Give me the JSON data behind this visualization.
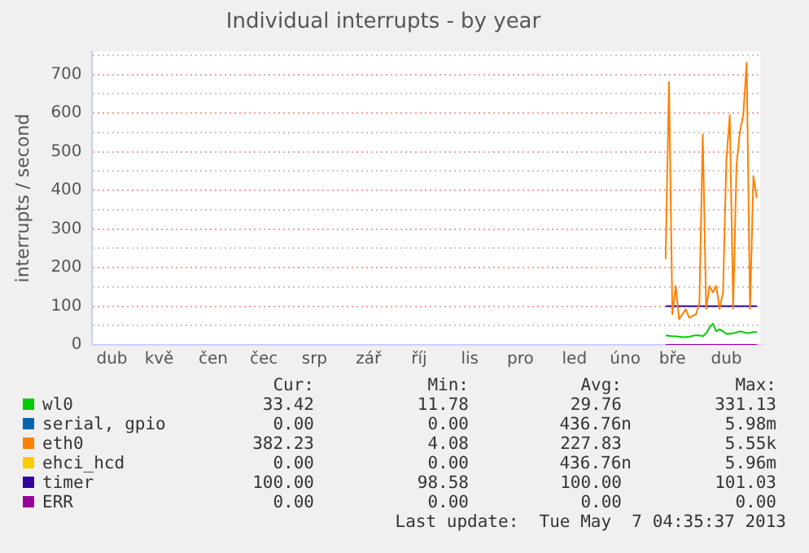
{
  "chart_data": {
    "type": "line",
    "title": "Individual interrupts - by year",
    "ylabel": "interrupts / second",
    "categories": [
      null,
      null,
      null,
      null,
      null,
      null,
      "dub",
      null,
      null,
      null,
      null,
      null,
      null,
      null,
      null,
      null,
      null,
      null,
      null,
      null,
      "kvě",
      null,
      null,
      null,
      null,
      null,
      null,
      null,
      null,
      null,
      null,
      null,
      null,
      null,
      null,
      null,
      "čen",
      null,
      null,
      null,
      null,
      null,
      null,
      null,
      null,
      null,
      null,
      null,
      null,
      null,
      null,
      "čec",
      null,
      null,
      null,
      null,
      null,
      null,
      null,
      null,
      null,
      null,
      null,
      null,
      null,
      null,
      "srp",
      null,
      null,
      null,
      null,
      null,
      null,
      null,
      null,
      null,
      null,
      null,
      null,
      null,
      null,
      null,
      "zář",
      null,
      null,
      null,
      null,
      null,
      null,
      null,
      null,
      null,
      null,
      null,
      null,
      null,
      null,
      "říj",
      null,
      null,
      null,
      null,
      null,
      null,
      null,
      null,
      null,
      null,
      null,
      null,
      null,
      null,
      "lis",
      null,
      null,
      null,
      null,
      null,
      null,
      null,
      null,
      null,
      null,
      null,
      null,
      null,
      null,
      "pro",
      null,
      null,
      null,
      null,
      null,
      null,
      null,
      null,
      null,
      null,
      null,
      null,
      null,
      null,
      null,
      "led",
      null,
      null,
      null,
      null,
      null,
      null,
      null,
      null,
      null,
      null,
      null,
      null,
      null,
      null,
      "úno",
      null,
      null,
      null,
      null,
      null,
      null,
      null,
      null,
      null,
      null,
      null,
      null,
      null,
      "bře",
      null,
      null,
      null,
      null,
      null,
      null,
      null,
      null,
      null,
      null,
      null,
      null,
      null,
      null,
      null,
      "dub",
      null,
      null,
      null,
      null,
      null,
      null,
      null,
      null,
      null,
      null
    ],
    "ylim": [
      0,
      760
    ],
    "yticks": [
      0,
      {
        "value": 50,
        "label": null
      },
      100,
      {
        "value": 150,
        "label": null
      },
      200,
      {
        "value": 250,
        "label": null
      },
      300,
      {
        "value": 350,
        "label": null
      },
      400,
      {
        "value": 450,
        "label": null
      },
      500,
      {
        "value": 550,
        "label": null
      },
      600,
      {
        "value": 650,
        "label": null
      },
      700,
      {
        "value": 750,
        "label": null
      }
    ],
    "grid": "y",
    "legend": "bottom",
    "series": [
      {
        "name": "wl0",
        "color": "#00cc00",
        "values": [
          null,
          null,
          null,
          null,
          null,
          null,
          null,
          null,
          null,
          null,
          null,
          null,
          null,
          null,
          null,
          null,
          null,
          null,
          null,
          null,
          null,
          null,
          null,
          null,
          null,
          null,
          null,
          null,
          null,
          null,
          null,
          null,
          null,
          null,
          null,
          null,
          null,
          null,
          null,
          null,
          null,
          null,
          null,
          null,
          null,
          null,
          null,
          null,
          null,
          null,
          null,
          null,
          null,
          null,
          null,
          null,
          null,
          null,
          null,
          null,
          null,
          null,
          null,
          null,
          null,
          null,
          null,
          null,
          null,
          null,
          null,
          null,
          null,
          null,
          null,
          null,
          null,
          null,
          null,
          null,
          null,
          null,
          null,
          null,
          null,
          null,
          null,
          null,
          null,
          null,
          null,
          null,
          null,
          null,
          null,
          null,
          null,
          null,
          null,
          null,
          null,
          null,
          null,
          null,
          null,
          null,
          null,
          null,
          null,
          null,
          null,
          null,
          null,
          null,
          null,
          null,
          null,
          null,
          null,
          null,
          null,
          null,
          null,
          null,
          null,
          null,
          null,
          null,
          null,
          null,
          null,
          null,
          null,
          null,
          null,
          null,
          null,
          null,
          null,
          null,
          null,
          null,
          null,
          null,
          null,
          null,
          null,
          null,
          null,
          null,
          null,
          null,
          null,
          null,
          null,
          null,
          null,
          null,
          null,
          null,
          null,
          null,
          null,
          null,
          null,
          null,
          null,
          null,
          null,
          null,
          24,
          23,
          22,
          22,
          21,
          20,
          20,
          21,
          23,
          25,
          24,
          22,
          30,
          45,
          55,
          35,
          40,
          35,
          28,
          29,
          30,
          32,
          35,
          33,
          30,
          31,
          33,
          33,
          null
        ]
      },
      {
        "name": "serial, gpio",
        "color": "#0066b3",
        "values": [
          null,
          null,
          null,
          null,
          null,
          null,
          null,
          null,
          null,
          null,
          null,
          null,
          null,
          null,
          null,
          null,
          null,
          null,
          null,
          null,
          null,
          null,
          null,
          null,
          null,
          null,
          null,
          null,
          null,
          null,
          null,
          null,
          null,
          null,
          null,
          null,
          null,
          null,
          null,
          null,
          null,
          null,
          null,
          null,
          null,
          null,
          null,
          null,
          null,
          null,
          null,
          null,
          null,
          null,
          null,
          null,
          null,
          null,
          null,
          null,
          null,
          null,
          null,
          null,
          null,
          null,
          null,
          null,
          null,
          null,
          null,
          null,
          null,
          null,
          null,
          null,
          null,
          null,
          null,
          null,
          null,
          null,
          null,
          null,
          null,
          null,
          null,
          null,
          null,
          null,
          null,
          null,
          null,
          null,
          null,
          null,
          null,
          null,
          null,
          null,
          null,
          null,
          null,
          null,
          null,
          null,
          null,
          null,
          null,
          null,
          null,
          null,
          null,
          null,
          null,
          null,
          null,
          null,
          null,
          null,
          null,
          null,
          null,
          null,
          null,
          null,
          null,
          null,
          null,
          null,
          null,
          null,
          null,
          null,
          null,
          null,
          null,
          null,
          null,
          null,
          null,
          null,
          null,
          null,
          null,
          null,
          null,
          null,
          null,
          null,
          null,
          null,
          null,
          null,
          null,
          null,
          null,
          null,
          null,
          null,
          null,
          null,
          null,
          null,
          null,
          null,
          null,
          null,
          null,
          null,
          null,
          null,
          null,
          null,
          null,
          null,
          null,
          null,
          null,
          null,
          null,
          null,
          null,
          null,
          null,
          null,
          null,
          null,
          null,
          null,
          null,
          null,
          null,
          null,
          null,
          null,
          null,
          null,
          null
        ]
      },
      {
        "name": "eth0",
        "color": "#ff8000",
        "values": [
          null,
          null,
          null,
          null,
          null,
          null,
          null,
          null,
          null,
          null,
          null,
          null,
          null,
          null,
          null,
          null,
          null,
          null,
          null,
          null,
          null,
          null,
          null,
          null,
          null,
          null,
          null,
          null,
          null,
          null,
          null,
          null,
          null,
          null,
          null,
          null,
          null,
          null,
          null,
          null,
          null,
          null,
          null,
          null,
          null,
          null,
          null,
          null,
          null,
          null,
          null,
          null,
          null,
          null,
          null,
          null,
          null,
          null,
          null,
          null,
          null,
          null,
          null,
          null,
          null,
          null,
          null,
          null,
          null,
          null,
          null,
          null,
          null,
          null,
          null,
          null,
          null,
          null,
          null,
          null,
          null,
          null,
          null,
          null,
          null,
          null,
          null,
          null,
          null,
          null,
          null,
          null,
          null,
          null,
          null,
          null,
          null,
          null,
          null,
          null,
          null,
          null,
          null,
          null,
          null,
          null,
          null,
          null,
          null,
          null,
          null,
          null,
          null,
          null,
          null,
          null,
          null,
          null,
          null,
          null,
          null,
          null,
          null,
          null,
          null,
          null,
          null,
          null,
          null,
          null,
          null,
          null,
          null,
          null,
          null,
          null,
          null,
          null,
          null,
          null,
          null,
          null,
          null,
          null,
          null,
          null,
          null,
          null,
          null,
          null,
          null,
          null,
          null,
          null,
          null,
          null,
          null,
          null,
          null,
          null,
          null,
          null,
          null,
          null,
          null,
          null,
          null,
          null,
          null,
          null,
          222,
          681,
          79,
          152,
          66,
          80,
          92,
          70,
          75,
          79,
          108,
          545,
          93,
          152,
          136,
          152,
          93,
          136,
          480,
          595,
          93,
          466,
          552,
          595,
          731,
          93,
          437,
          380,
          null
        ]
      },
      {
        "name": "ehci_hcd",
        "color": "#ffcc00",
        "values": [
          null,
          null,
          null,
          null,
          null,
          null,
          null,
          null,
          null,
          null,
          null,
          null,
          null,
          null,
          null,
          null,
          null,
          null,
          null,
          null,
          null,
          null,
          null,
          null,
          null,
          null,
          null,
          null,
          null,
          null,
          null,
          null,
          null,
          null,
          null,
          null,
          null,
          null,
          null,
          null,
          null,
          null,
          null,
          null,
          null,
          null,
          null,
          null,
          null,
          null,
          null,
          null,
          null,
          null,
          null,
          null,
          null,
          null,
          null,
          null,
          null,
          null,
          null,
          null,
          null,
          null,
          null,
          null,
          null,
          null,
          null,
          null,
          null,
          null,
          null,
          null,
          null,
          null,
          null,
          null,
          null,
          null,
          null,
          null,
          null,
          null,
          null,
          null,
          null,
          null,
          null,
          null,
          null,
          null,
          null,
          null,
          null,
          null,
          null,
          null,
          null,
          null,
          null,
          null,
          null,
          null,
          null,
          null,
          null,
          null,
          null,
          null,
          null,
          null,
          null,
          null,
          null,
          null,
          null,
          null,
          null,
          null,
          null,
          null,
          null,
          null,
          null,
          null,
          null,
          null,
          null,
          null,
          null,
          null,
          null,
          null,
          null,
          null,
          null,
          null,
          null,
          null,
          null,
          null,
          null,
          null,
          null,
          null,
          null,
          null,
          null,
          null,
          null,
          null,
          null,
          null,
          null,
          null,
          null,
          null,
          null,
          null,
          null,
          null,
          null,
          null,
          null,
          null,
          null,
          null,
          null,
          null,
          null,
          null,
          null,
          null,
          null,
          null,
          null,
          null,
          null,
          null,
          null,
          null,
          null,
          null,
          null,
          null,
          null,
          null,
          null,
          null,
          null,
          null,
          null,
          null,
          null,
          null,
          null
        ]
      },
      {
        "name": "timer",
        "color": "#330099",
        "values": [
          null,
          null,
          null,
          null,
          null,
          null,
          null,
          null,
          null,
          null,
          null,
          null,
          null,
          null,
          null,
          null,
          null,
          null,
          null,
          null,
          null,
          null,
          null,
          null,
          null,
          null,
          null,
          null,
          null,
          null,
          null,
          null,
          null,
          null,
          null,
          null,
          null,
          null,
          null,
          null,
          null,
          null,
          null,
          null,
          null,
          null,
          null,
          null,
          null,
          null,
          null,
          null,
          null,
          null,
          null,
          null,
          null,
          null,
          null,
          null,
          null,
          null,
          null,
          null,
          null,
          null,
          null,
          null,
          null,
          null,
          null,
          null,
          null,
          null,
          null,
          null,
          null,
          null,
          null,
          null,
          null,
          null,
          null,
          null,
          null,
          null,
          null,
          null,
          null,
          null,
          null,
          null,
          null,
          null,
          null,
          null,
          null,
          null,
          null,
          null,
          null,
          null,
          null,
          null,
          null,
          null,
          null,
          null,
          null,
          null,
          null,
          null,
          null,
          null,
          null,
          null,
          null,
          null,
          null,
          null,
          null,
          null,
          null,
          null,
          null,
          null,
          null,
          null,
          null,
          null,
          null,
          null,
          null,
          null,
          null,
          null,
          null,
          null,
          null,
          null,
          null,
          null,
          null,
          null,
          null,
          null,
          null,
          null,
          null,
          null,
          null,
          null,
          null,
          null,
          null,
          null,
          null,
          null,
          null,
          null,
          null,
          null,
          null,
          null,
          null,
          null,
          null,
          null,
          null,
          null,
          100,
          100,
          100,
          100,
          100,
          100,
          100,
          100,
          100,
          100,
          100,
          100,
          100,
          100,
          100,
          100,
          100,
          100,
          100,
          100,
          100,
          100,
          100,
          100,
          100,
          100,
          100,
          100,
          null
        ]
      },
      {
        "name": "ERR",
        "color": "#990099",
        "values": [
          null,
          null,
          null,
          null,
          null,
          null,
          null,
          null,
          null,
          null,
          null,
          null,
          null,
          null,
          null,
          null,
          null,
          null,
          null,
          null,
          null,
          null,
          null,
          null,
          null,
          null,
          null,
          null,
          null,
          null,
          null,
          null,
          null,
          null,
          null,
          null,
          null,
          null,
          null,
          null,
          null,
          null,
          null,
          null,
          null,
          null,
          null,
          null,
          null,
          null,
          null,
          null,
          null,
          null,
          null,
          null,
          null,
          null,
          null,
          null,
          null,
          null,
          null,
          null,
          null,
          null,
          null,
          null,
          null,
          null,
          null,
          null,
          null,
          null,
          null,
          null,
          null,
          null,
          null,
          null,
          null,
          null,
          null,
          null,
          null,
          null,
          null,
          null,
          null,
          null,
          null,
          null,
          null,
          null,
          null,
          null,
          null,
          null,
          null,
          null,
          null,
          null,
          null,
          null,
          null,
          null,
          null,
          null,
          null,
          null,
          null,
          null,
          null,
          null,
          null,
          null,
          null,
          null,
          null,
          null,
          null,
          null,
          null,
          null,
          null,
          null,
          null,
          null,
          null,
          null,
          null,
          null,
          null,
          null,
          null,
          null,
          null,
          null,
          null,
          null,
          null,
          null,
          null,
          null,
          null,
          null,
          null,
          null,
          null,
          null,
          null,
          null,
          null,
          null,
          null,
          null,
          null,
          null,
          null,
          null,
          null,
          null,
          null,
          null,
          null,
          null,
          null,
          null,
          null,
          null,
          0,
          0,
          0,
          0,
          0,
          0,
          0,
          0,
          0,
          0,
          0,
          0,
          0,
          0,
          0,
          0,
          0,
          0,
          0,
          0,
          0,
          0,
          0,
          0,
          0,
          0,
          0,
          0,
          null
        ]
      }
    ],
    "annotations": [
      "Cur:",
      "Min:",
      "Avg:",
      "Max:",
      "33.42",
      "11.78",
      "29.76",
      "331.13",
      "0.00",
      "0.00",
      "436.76n",
      "5.98m",
      "382.23",
      "4.08",
      "227.83",
      "5.55k",
      "0.00",
      "0.00",
      "436.76n",
      "5.96m",
      "100.00",
      "98.58",
      "100.00",
      "101.03",
      "0.00",
      "0.00",
      "0.00",
      "0.00",
      "Last update:  Tue May  7 04:35:37 2013"
    ]
  }
}
